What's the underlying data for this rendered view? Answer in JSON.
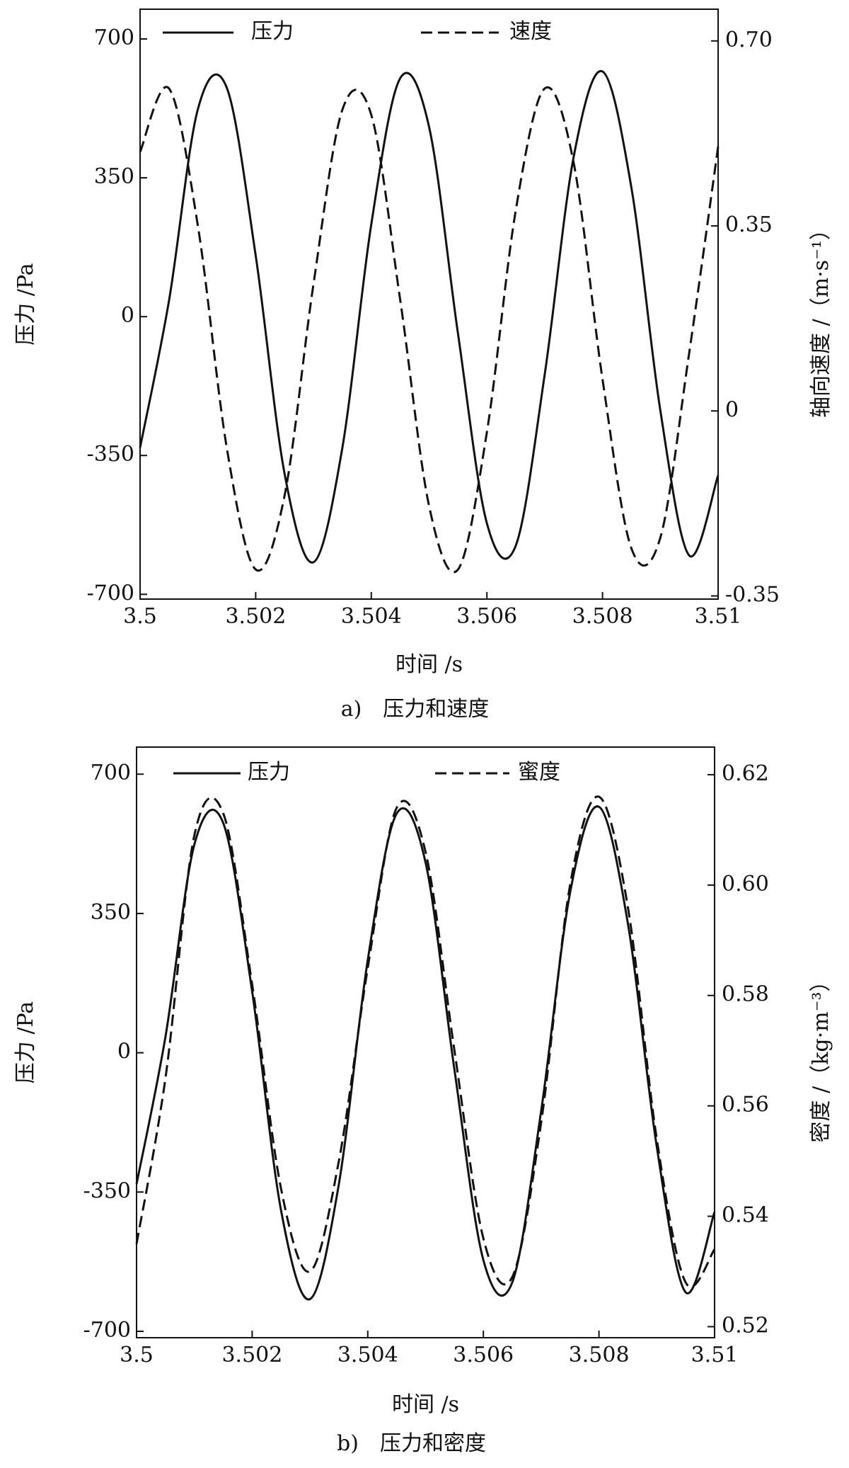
{
  "chart_data": [
    {
      "type": "line",
      "caption": "a)　压力和速度",
      "xlabel": "时间 /s",
      "ylabel": "压力 /Pa",
      "y2label": "轴向速度 /（m·s⁻¹）",
      "x": [
        3.5,
        3.5005,
        3.501,
        3.5015,
        3.502,
        3.5025,
        3.503,
        3.5035,
        3.504,
        3.5045,
        3.505,
        3.5055,
        3.506,
        3.5065,
        3.507,
        3.5075,
        3.508,
        3.5085,
        3.509,
        3.5095,
        3.51
      ],
      "xlim": [
        3.5,
        3.51
      ],
      "xticks": [
        3.5,
        3.502,
        3.504,
        3.506,
        3.508,
        3.51
      ],
      "ylim": [
        -712,
        775
      ],
      "yticks": [
        700,
        350,
        0,
        -350,
        -700
      ],
      "y2lim": [
        -0.356,
        0.76
      ],
      "y2ticks": [
        {
          "value": 0.7,
          "label": "0.70"
        },
        0.35,
        0,
        -0.35
      ],
      "series": [
        {
          "name": "压力",
          "color": "#111111",
          "linestyle": "solid",
          "values": [
            -330,
            40,
            523,
            577,
            154,
            -396,
            -619,
            -330,
            233,
            601,
            478,
            -43,
            -521,
            -577,
            -146,
            402,
            618,
            325,
            -236,
            -602,
            -400
          ]
        },
        {
          "name": "速度",
          "color": "#111111",
          "linestyle": "dashed",
          "axis": "y2",
          "values": [
            0.49,
            0.61,
            0.35,
            -0.07,
            -0.3,
            -0.16,
            0.24,
            0.57,
            0.56,
            0.21,
            -0.18,
            -0.3,
            -0.04,
            0.38,
            0.61,
            0.47,
            0.06,
            -0.26,
            -0.24,
            0.11,
            0.5
          ]
        }
      ]
    },
    {
      "type": "line",
      "caption": "b)　压力和密度",
      "xlabel": "时间 /s",
      "ylabel": "压力 /Pa",
      "y2label": "密度 /（kg·m⁻³）",
      "x": [
        3.5,
        3.5005,
        3.501,
        3.5015,
        3.502,
        3.5025,
        3.503,
        3.5035,
        3.504,
        3.5045,
        3.505,
        3.5055,
        3.506,
        3.5065,
        3.507,
        3.5075,
        3.508,
        3.5085,
        3.509,
        3.5095,
        3.51
      ],
      "xlim": [
        3.5,
        3.51
      ],
      "xticks": [
        3.5,
        3.502,
        3.504,
        3.506,
        3.508,
        3.51
      ],
      "ylim": [
        -716,
        768
      ],
      "yticks": [
        700,
        350,
        0,
        -350,
        -700
      ],
      "y2lim": [
        0.518,
        0.625
      ],
      "y2ticks": [
        0.62,
        {
          "value": 0.6,
          "label": "0.60"
        },
        0.58,
        0.56,
        0.54,
        0.52
      ],
      "series": [
        {
          "name": "压力",
          "color": "#111111",
          "linestyle": "solid",
          "values": [
            -330,
            40,
            523,
            577,
            154,
            -396,
            -619,
            -330,
            233,
            601,
            478,
            -43,
            -521,
            -577,
            -146,
            402,
            618,
            325,
            -236,
            -602,
            -400
          ]
        },
        {
          "name": "蜜度",
          "color": "#111111",
          "linestyle": "dashed",
          "axis": "y2",
          "values": [
            0.535,
            0.565,
            0.609,
            0.613,
            0.582,
            0.545,
            0.53,
            0.55,
            0.585,
            0.614,
            0.606,
            0.57,
            0.536,
            0.529,
            0.557,
            0.6,
            0.616,
            0.596,
            0.554,
            0.528,
            0.534
          ]
        }
      ]
    }
  ]
}
